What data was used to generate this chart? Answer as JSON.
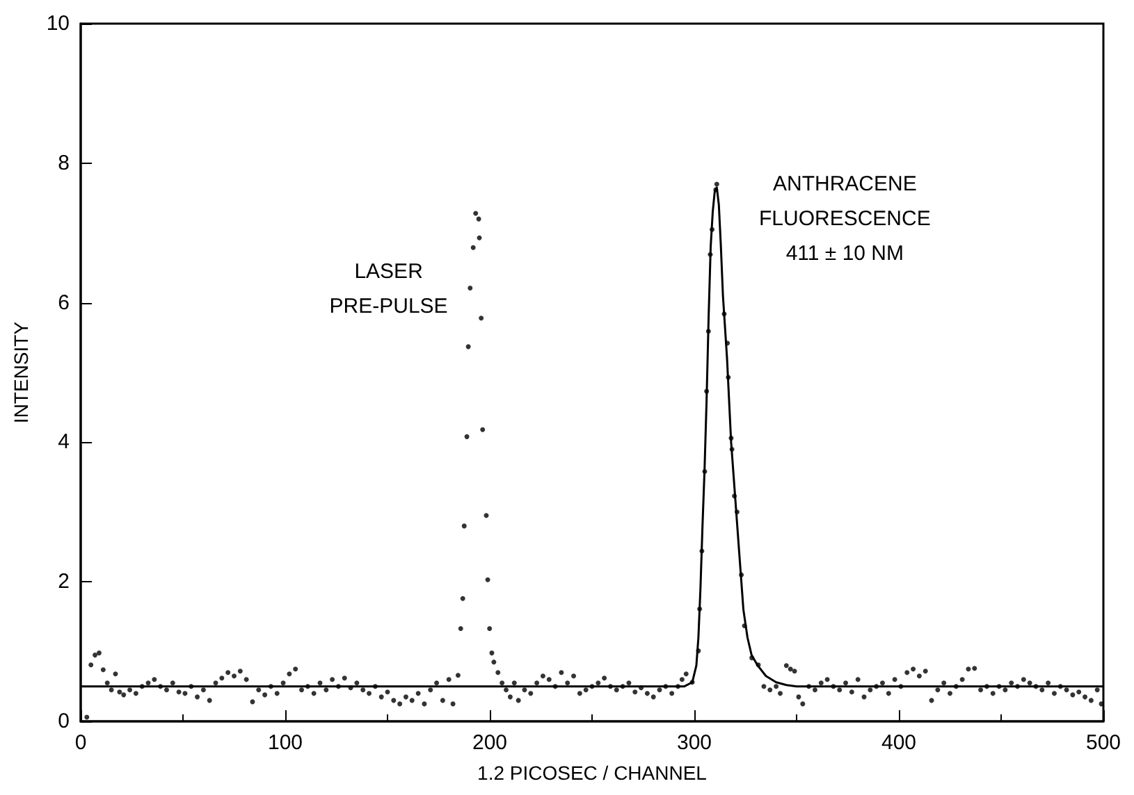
{
  "chart_data": {
    "type": "scatter",
    "xlabel": "1.2 PICOSEC / CHANNEL",
    "ylabel": "INTENSITY",
    "xlim": [
      0,
      500
    ],
    "xticks": [
      0,
      100,
      200,
      300,
      400,
      500
    ],
    "ylim": [
      0,
      10
    ],
    "yticks": [
      0,
      2,
      4,
      6,
      8,
      10
    ],
    "grid": false,
    "annotations": [
      {
        "text": "LASER\nPRE-PULSE",
        "x": 190,
        "y": 6.2
      },
      {
        "text": "ANTHRACENE\nFLUORESCENCE\n411 ± 10 NM",
        "x": 311,
        "y": 7.6
      }
    ],
    "series": [
      {
        "marker": "circle",
        "color": "#000000",
        "x": [
          3,
          5,
          7,
          9,
          11,
          13,
          15,
          17,
          19,
          21,
          24,
          27,
          30,
          33,
          36,
          39,
          42,
          45,
          48,
          51,
          54,
          57,
          60,
          63,
          66,
          69,
          72,
          75,
          78,
          81,
          84,
          87,
          90,
          93,
          96,
          99,
          102,
          105,
          108,
          111,
          114,
          117,
          120,
          123,
          126,
          129,
          132,
          135,
          138,
          141,
          144,
          147,
          150,
          153,
          156,
          159,
          162,
          165,
          168,
          171,
          174,
          177,
          180,
          182,
          184.5,
          185.8,
          186.8,
          187.5,
          188.8,
          189.5,
          190.4,
          191.9,
          193.1,
          194.6,
          194.9,
          195.8,
          196.5,
          198.3,
          199,
          199.9,
          201,
          202,
          204,
          206,
          208,
          210,
          212,
          214,
          217,
          220,
          223,
          226,
          229,
          232,
          235,
          238,
          241,
          244,
          247,
          250,
          253,
          256,
          259,
          262,
          265,
          268,
          271,
          274,
          277,
          280,
          283,
          286,
          289,
          292,
          294,
          296,
          299,
          302,
          302.6,
          303.7,
          305.1,
          306,
          306.9,
          307.8,
          308.7,
          310.5,
          311,
          314.6,
          316.2,
          316.6,
          318,
          318.4,
          319.6,
          320.9,
          323,
          324.5,
          328.1,
          331.3,
          334,
          337,
          340,
          342,
          345,
          347,
          349,
          351,
          353,
          356,
          359,
          362,
          365,
          368,
          371,
          374,
          377,
          380,
          383,
          386,
          389,
          392,
          395,
          398,
          401,
          404,
          407,
          410,
          413,
          416,
          419,
          422,
          425,
          428,
          431,
          434,
          437,
          440,
          443,
          446,
          449,
          452,
          455,
          458,
          461,
          464,
          467,
          470,
          473,
          476,
          479,
          482,
          485,
          488,
          491,
          494,
          497,
          499
        ],
        "values": [
          0.06,
          0.81,
          0.95,
          0.98,
          0.74,
          0.55,
          0.45,
          0.68,
          0.42,
          0.38,
          0.45,
          0.4,
          0.5,
          0.55,
          0.6,
          0.5,
          0.45,
          0.55,
          0.42,
          0.4,
          0.5,
          0.35,
          0.45,
          0.3,
          0.55,
          0.62,
          0.7,
          0.65,
          0.72,
          0.6,
          0.28,
          0.45,
          0.38,
          0.5,
          0.4,
          0.55,
          0.68,
          0.75,
          0.45,
          0.5,
          0.4,
          0.55,
          0.45,
          0.6,
          0.5,
          0.62,
          0.48,
          0.55,
          0.45,
          0.4,
          0.5,
          0.35,
          0.42,
          0.3,
          0.25,
          0.35,
          0.3,
          0.4,
          0.25,
          0.45,
          0.55,
          0.3,
          0.6,
          0.25,
          0.66,
          1.33,
          1.76,
          2.8,
          4.08,
          5.37,
          6.21,
          6.79,
          7.28,
          7.2,
          6.93,
          5.78,
          4.18,
          2.95,
          2.03,
          1.33,
          0.98,
          0.85,
          0.7,
          0.55,
          0.45,
          0.35,
          0.55,
          0.3,
          0.45,
          0.4,
          0.55,
          0.65,
          0.6,
          0.5,
          0.7,
          0.55,
          0.65,
          0.4,
          0.45,
          0.5,
          0.55,
          0.62,
          0.5,
          0.45,
          0.5,
          0.55,
          0.42,
          0.48,
          0.4,
          0.35,
          0.45,
          0.5,
          0.4,
          0.5,
          0.6,
          0.68,
          0.56,
          1.01,
          1.61,
          2.44,
          3.58,
          4.73,
          5.59,
          6.69,
          7.05,
          7.62,
          7.7,
          5.84,
          5.42,
          4.93,
          4.06,
          3.9,
          3.23,
          3.0,
          2.1,
          1.37,
          0.91,
          0.81,
          0.5,
          0.45,
          0.5,
          0.4,
          0.8,
          0.75,
          0.72,
          0.35,
          0.25,
          0.5,
          0.45,
          0.55,
          0.6,
          0.5,
          0.45,
          0.55,
          0.42,
          0.6,
          0.35,
          0.45,
          0.5,
          0.55,
          0.4,
          0.6,
          0.5,
          0.7,
          0.75,
          0.65,
          0.72,
          0.3,
          0.45,
          0.55,
          0.4,
          0.5,
          0.6,
          0.75,
          0.76,
          0.45,
          0.5,
          0.4,
          0.5,
          0.45,
          0.55,
          0.5,
          0.6,
          0.55,
          0.5,
          0.45,
          0.55,
          0.4,
          0.5,
          0.45,
          0.38,
          0.42,
          0.35,
          0.3,
          0.45,
          0.25
        ]
      },
      {
        "type": "line",
        "color": "#000000",
        "line_style": "solid",
        "x": [
          0,
          295,
          299,
          301,
          302,
          303,
          304,
          305,
          306,
          307,
          308,
          309,
          310,
          311,
          312,
          313,
          314,
          316,
          318,
          320,
          322,
          324,
          326,
          328,
          331,
          335,
          340,
          345,
          350,
          500
        ],
        "values": [
          0.5,
          0.5,
          0.56,
          0.8,
          1.2,
          1.9,
          2.8,
          3.6,
          4.6,
          5.8,
          6.8,
          7.3,
          7.6,
          7.65,
          7.4,
          6.8,
          6.1,
          5.2,
          4.0,
          3.2,
          2.4,
          1.6,
          1.2,
          0.95,
          0.8,
          0.65,
          0.56,
          0.52,
          0.5,
          0.5
        ]
      }
    ]
  }
}
